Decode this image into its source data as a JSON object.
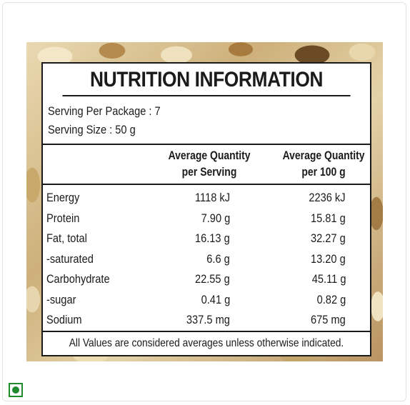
{
  "label": {
    "title": "NUTRITION INFORMATION",
    "serving_per_package": "Serving Per Package : 7",
    "serving_size": "Serving Size : 50 g",
    "columns": {
      "per_serving_line1": "Average Quantity",
      "per_serving_line2": "per Serving",
      "per_100g_line1": "Average Quantity",
      "per_100g_line2": "per 100 g"
    },
    "rows": [
      {
        "name": "Energy",
        "per_serving": "1118 kJ",
        "per_100g": "2236 kJ"
      },
      {
        "name": "Protein",
        "per_serving": "7.90 g",
        "per_100g": "15.81 g"
      },
      {
        "name": "Fat, total",
        "per_serving": "16.13 g",
        "per_100g": "32.27 g"
      },
      {
        "name": "-saturated",
        "per_serving": "6.6 g",
        "per_100g": "13.20 g"
      },
      {
        "name": "Carbohydrate",
        "per_serving": "22.55 g",
        "per_100g": "45.11 g"
      },
      {
        "name": "-sugar",
        "per_serving": "0.41 g",
        "per_100g": "0.82 g"
      },
      {
        "name": "Sodium",
        "per_serving": "337.5 mg",
        "per_100g": "675 mg"
      }
    ],
    "footer": "All Values are considered averages unless otherwise indicated."
  },
  "veg_mark": {
    "icon": "vegetarian-mark-icon",
    "color": "#1f8a2e"
  }
}
